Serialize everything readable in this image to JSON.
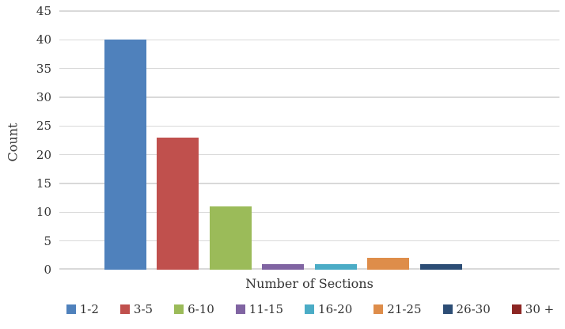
{
  "chart_data": {
    "type": "bar",
    "categories": [
      "1-2",
      "3-5",
      "6-10",
      "11-15",
      "16-20",
      "21-25",
      "26-30",
      "30 +"
    ],
    "values": [
      40,
      23,
      11,
      1,
      1,
      2,
      1,
      0
    ],
    "colors": [
      "#4F81BC",
      "#C0504D",
      "#9BBB59",
      "#8064A2",
      "#4BACC6",
      "#DE8D4A",
      "#2C4D75",
      "#8C2623"
    ],
    "title": "",
    "xlabel": "Number of Sections",
    "ylabel": "Count",
    "ylim": [
      0,
      45
    ],
    "ytick_step": 5,
    "yticks": [
      "0",
      "5",
      "10",
      "15",
      "20",
      "25",
      "30",
      "35",
      "40",
      "45"
    ],
    "grid": true,
    "gridline_color": "#D9D9D9",
    "legend_position": "bottom",
    "text_color": "#333333",
    "background_color": "#FFFFFF"
  }
}
